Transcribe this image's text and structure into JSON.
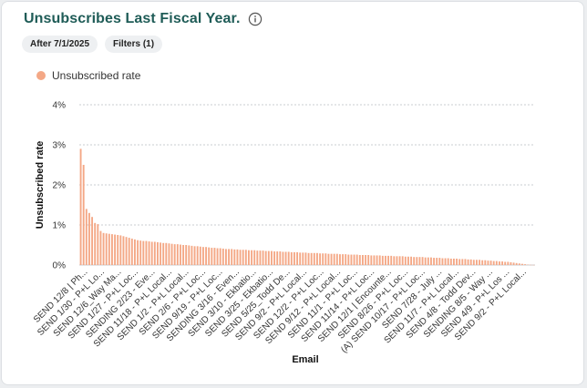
{
  "header": {
    "title": "Unsubscribes Last Fiscal Year.",
    "info_icon": "info-circle-icon"
  },
  "filters": {
    "date_pill": "After 7/1/2025",
    "filters_pill": "Filters (1)"
  },
  "colors": {
    "title": "#1f5c57",
    "series": "#f4a886",
    "grid": "#c9ccd1"
  },
  "chart_data": {
    "type": "bar",
    "xlabel": "Email",
    "ylabel": "Unsubscribed rate",
    "ylim": [
      0,
      4
    ],
    "y_ticks": [
      "4%",
      "3%",
      "2%",
      "1%",
      "0%"
    ],
    "grid": true,
    "legend_position": "top-left",
    "series": [
      {
        "name": "Unsubscribed rate",
        "values": [
          2.9,
          2.5,
          1.4,
          1.3,
          1.2,
          1.05,
          1.02,
          0.85,
          0.8,
          0.79,
          0.78,
          0.77,
          0.76,
          0.75,
          0.74,
          0.72,
          0.7,
          0.68,
          0.66,
          0.64,
          0.62,
          0.61,
          0.6,
          0.6,
          0.59,
          0.58,
          0.58,
          0.57,
          0.56,
          0.55,
          0.55,
          0.54,
          0.53,
          0.52,
          0.52,
          0.51,
          0.5,
          0.5,
          0.49,
          0.48,
          0.47,
          0.47,
          0.46,
          0.45,
          0.45,
          0.44,
          0.43,
          0.43,
          0.42,
          0.42,
          0.41,
          0.4,
          0.4,
          0.4,
          0.39,
          0.39,
          0.38,
          0.38,
          0.38,
          0.37,
          0.37,
          0.37,
          0.36,
          0.36,
          0.36,
          0.35,
          0.35,
          0.35,
          0.34,
          0.34,
          0.34,
          0.33,
          0.33,
          0.33,
          0.32,
          0.32,
          0.32,
          0.31,
          0.31,
          0.31,
          0.3,
          0.3,
          0.3,
          0.3,
          0.29,
          0.29,
          0.29,
          0.28,
          0.28,
          0.28,
          0.28,
          0.27,
          0.27,
          0.27,
          0.26,
          0.26,
          0.26,
          0.26,
          0.25,
          0.25,
          0.25,
          0.25,
          0.24,
          0.24,
          0.24,
          0.24,
          0.23,
          0.23,
          0.23,
          0.23,
          0.22,
          0.22,
          0.22,
          0.22,
          0.21,
          0.21,
          0.21,
          0.2,
          0.2,
          0.2,
          0.2,
          0.19,
          0.19,
          0.19,
          0.18,
          0.18,
          0.18,
          0.17,
          0.17,
          0.17,
          0.16,
          0.16,
          0.16,
          0.15,
          0.15,
          0.15,
          0.14,
          0.14,
          0.13,
          0.13,
          0.13,
          0.12,
          0.12,
          0.11,
          0.11,
          0.1,
          0.1,
          0.09,
          0.09,
          0.08,
          0.08,
          0.07,
          0.06,
          0.05,
          0.04,
          0.03,
          0.02,
          0.01,
          0.005,
          0.003
        ]
      }
    ],
    "x_tick_labels": [
      "SEND 12/8 | Ph...",
      "SEND 1/30 - P+L Lo...",
      "SEND 12/6_Way Ma...",
      "SEND 1/27 - P+L Loc...",
      "SENDING 2/23 - Eve...",
      "SEND 11/18 - P+L Local...",
      "SEND 1/2 - P+L Local...",
      "SEND 2/6 - P+L Loc...",
      "SEND 9/19 - P+L Loc...",
      "SENDING 3/16 - Even...",
      "SEND 3/10 - Ekbatio...",
      "SEND 3/25 - Ekbatio...",
      "SEND 5/25_Todd De...",
      "SEND 9/2 - P+L Local...",
      "SEND 12/2 - P+L Loc...",
      "SEND 9/12 - P+L Local...",
      "SEND 11/1 - P+L Loc...",
      "SEND 11/14 - P+L Loc...",
      "SEND 12/1 | Encounte...",
      "SEND 8/26 - P+L Loc...",
      "(A) SEND 10/17 - P+L Loc...",
      "SEND 7/28 - July ...",
      "SEND 11/7 - P+L Local...",
      "SEND 4/8 - Todd Dev...",
      "SENDING 8/5 - Way ...",
      "SEND 4/9 - P+L Los ...",
      "SEND 9/2 - P+L Local..."
    ]
  }
}
